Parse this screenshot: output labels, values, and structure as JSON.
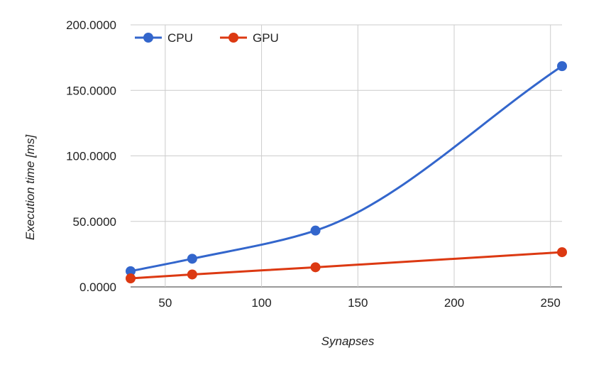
{
  "chart_data": {
    "type": "line",
    "smooth": true,
    "title": "",
    "xlabel": "Synapses",
    "ylabel": "Execution time [ms]",
    "xlim": [
      32,
      256
    ],
    "ylim": [
      0,
      200
    ],
    "xticks": [
      50,
      100,
      150,
      200,
      250
    ],
    "xtick_labels": [
      "50",
      "100",
      "150",
      "200",
      "250"
    ],
    "yticks": [
      0,
      50,
      100,
      150,
      200
    ],
    "ytick_labels": [
      "0.0000",
      "50.0000",
      "100.0000",
      "150.0000",
      "200.0000"
    ],
    "grid": true,
    "legend_position": "top-left",
    "x": [
      32,
      64,
      128,
      256
    ],
    "series": [
      {
        "name": "CPU",
        "color": "#3366cc",
        "values": [
          12.0,
          21.5,
          43.0,
          168.5
        ]
      },
      {
        "name": "GPU",
        "color": "#dc3912",
        "values": [
          6.5,
          9.5,
          15.0,
          26.5
        ]
      }
    ]
  }
}
